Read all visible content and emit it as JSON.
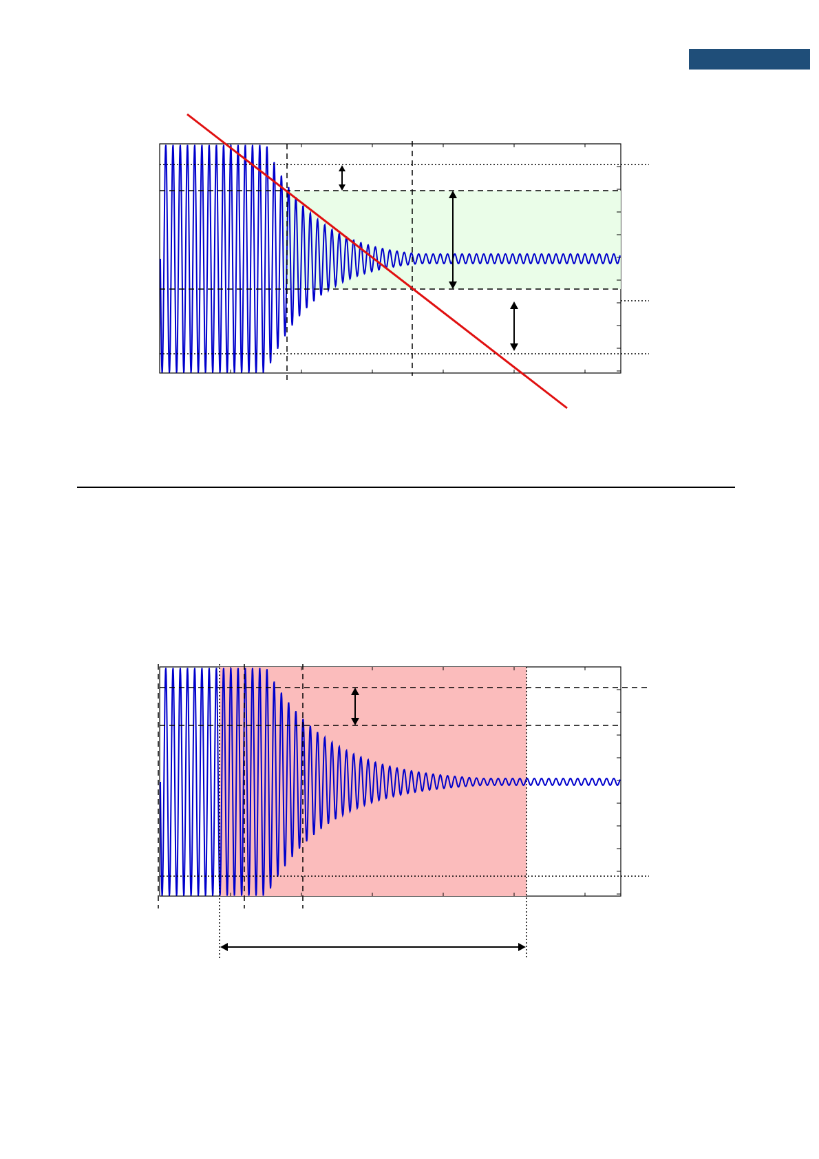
{
  "header": {
    "tab_color": "#1f4e79",
    "tab_label": ""
  },
  "colors": {
    "signal": "#0000cc",
    "tangent_line": "#e01010",
    "fill_band": "#e8fde6",
    "fill_window": "#fbbcbc",
    "guide": "#000000"
  },
  "figures": [
    {
      "id": "upper-decay-diagram",
      "labels": []
    },
    {
      "id": "lower-decay-diagram",
      "labels": []
    }
  ]
}
